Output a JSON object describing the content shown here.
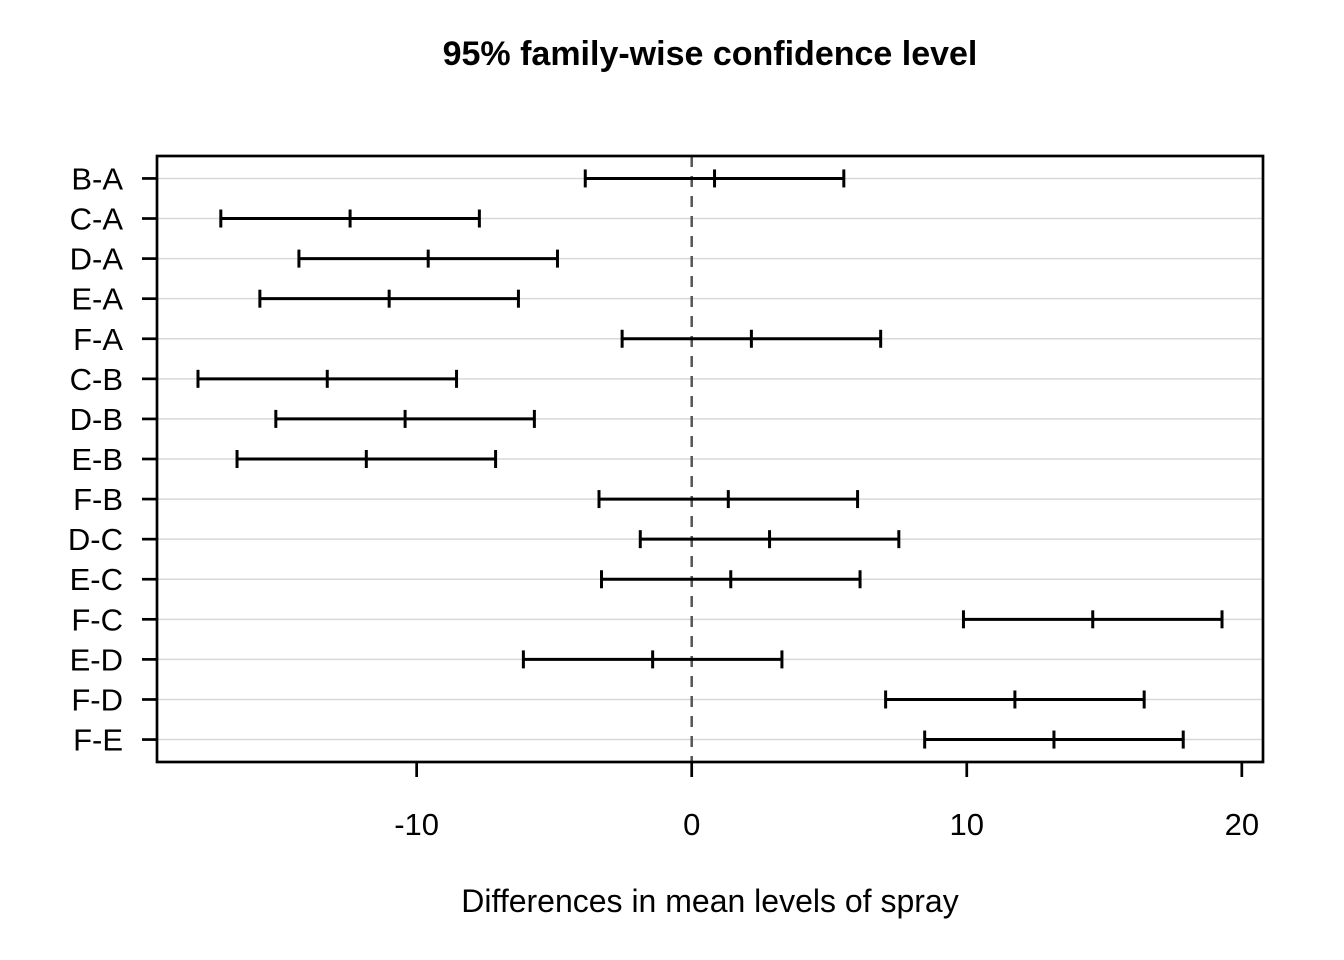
{
  "chart_data": {
    "type": "interval",
    "subtype": "TukeyHSD pairwise confidence intervals (horizontal error bars)",
    "title": "95% family-wise confidence level",
    "xlabel": "Differences in mean levels of spray",
    "ylabel": "",
    "xlim": [
      -19.44,
      20.77
    ],
    "xticks": [
      -10,
      0,
      10,
      20
    ],
    "grid": "horizontal-per-row",
    "legend": "none",
    "zero_line": {
      "x": 0,
      "style": "dashed"
    },
    "rows": [
      {
        "label": "B-A",
        "diff": 0.83,
        "lwr": -3.87,
        "upr": 5.53
      },
      {
        "label": "C-A",
        "diff": -12.42,
        "lwr": -17.12,
        "upr": -7.72
      },
      {
        "label": "D-A",
        "diff": -9.58,
        "lwr": -14.28,
        "upr": -4.88
      },
      {
        "label": "E-A",
        "diff": -11.0,
        "lwr": -15.7,
        "upr": -6.3
      },
      {
        "label": "F-A",
        "diff": 2.17,
        "lwr": -2.53,
        "upr": 6.87
      },
      {
        "label": "C-B",
        "diff": -13.25,
        "lwr": -17.95,
        "upr": -8.55
      },
      {
        "label": "D-B",
        "diff": -10.42,
        "lwr": -15.12,
        "upr": -5.72
      },
      {
        "label": "E-B",
        "diff": -11.83,
        "lwr": -16.53,
        "upr": -7.13
      },
      {
        "label": "F-B",
        "diff": 1.33,
        "lwr": -3.37,
        "upr": 6.03
      },
      {
        "label": "D-C",
        "diff": 2.83,
        "lwr": -1.87,
        "upr": 7.53
      },
      {
        "label": "E-C",
        "diff": 1.42,
        "lwr": -3.28,
        "upr": 6.12
      },
      {
        "label": "F-C",
        "diff": 14.58,
        "lwr": 9.88,
        "upr": 19.28
      },
      {
        "label": "E-D",
        "diff": -1.42,
        "lwr": -6.12,
        "upr": 3.28
      },
      {
        "label": "F-D",
        "diff": 11.75,
        "lwr": 7.05,
        "upr": 16.45
      },
      {
        "label": "F-E",
        "diff": 13.17,
        "lwr": 8.47,
        "upr": 17.87
      }
    ],
    "colors": {
      "interval": "#000000",
      "grid": "#D8D8D8",
      "zero_line": "#555555",
      "border": "#000000",
      "text": "#000000",
      "background": "#FFFFFF"
    }
  }
}
